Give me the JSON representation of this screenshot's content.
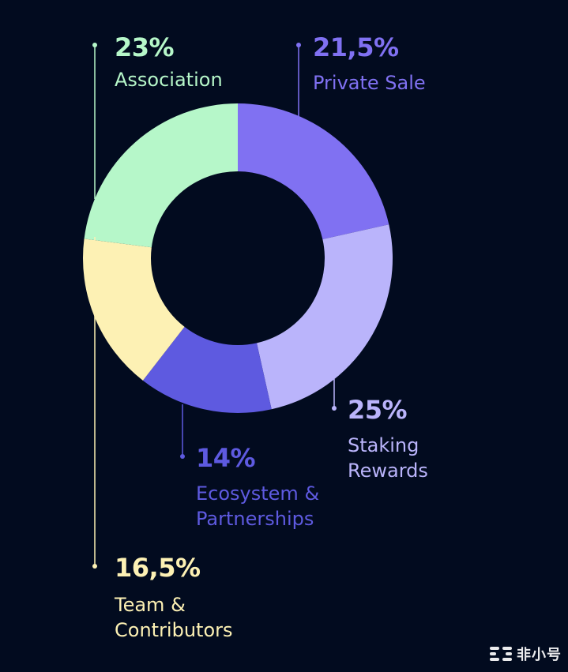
{
  "colors": {
    "background": "#020b1f",
    "association": "#b6f7c9",
    "private_sale": "#8071f2",
    "staking_rewards": "#bab4fb",
    "ecosystem": "#5e5ae0",
    "team": "#fdf1b4",
    "association_leader": "#b6f7c9",
    "team_leader": "#fdf1b4"
  },
  "chart_data": {
    "type": "pie",
    "donut": true,
    "start_angle_deg": 0,
    "direction": "clockwise",
    "slices": [
      {
        "key": "private_sale",
        "pct_label": "21,5%",
        "label_lines": [
          "Private Sale"
        ],
        "value": 21.5,
        "color": "#8071f2"
      },
      {
        "key": "staking_rewards",
        "pct_label": "25%",
        "label_lines": [
          "Staking",
          "Rewards"
        ],
        "value": 25,
        "color": "#bab4fb"
      },
      {
        "key": "ecosystem",
        "pct_label": "14%",
        "label_lines": [
          "Ecosystem &",
          "Partnerships"
        ],
        "value": 14,
        "color": "#5e5ae0"
      },
      {
        "key": "team",
        "pct_label": "16,5%",
        "label_lines": [
          "Team &",
          "Contributors"
        ],
        "value": 16.5,
        "color": "#fdf1b4"
      },
      {
        "key": "association",
        "pct_label": "23%",
        "label_lines": [
          "Association"
        ],
        "value": 23,
        "color": "#b6f7c9"
      }
    ]
  },
  "watermark": {
    "text": "非小号",
    "icon": "feixiaohao-logo-icon"
  }
}
